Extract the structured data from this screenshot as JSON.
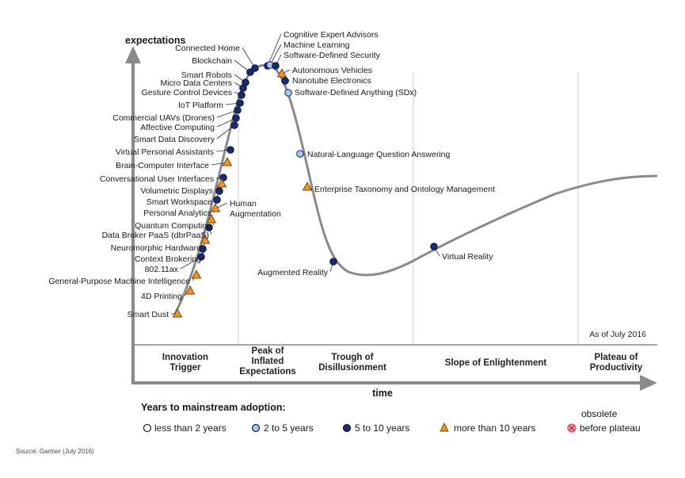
{
  "chart_data": {
    "type": "hype_cycle",
    "y_axis_label": "expectations",
    "x_axis_label": "time",
    "as_of": "As of July 2016",
    "phases": [
      {
        "lines": [
          "Innovation",
          "Trigger"
        ]
      },
      {
        "lines": [
          "Peak of",
          "Inflated",
          "Expectations"
        ]
      },
      {
        "lines": [
          "Trough of",
          "Disillusionment"
        ]
      },
      {
        "lines": [
          "Slope of Enlightenment"
        ]
      },
      {
        "lines": [
          "Plateau of",
          "Productivity"
        ]
      }
    ],
    "technologies": [
      {
        "name": "Cognitive Expert Advisors",
        "category": "5 to 10 years"
      },
      {
        "name": "Machine Learning",
        "category": "2 to 5 years"
      },
      {
        "name": "Software-Defined Security",
        "category": "5 to 10 years"
      },
      {
        "name": "Autonomous Vehicles",
        "category": "more than 10 years"
      },
      {
        "name": "Nanotube Electronics",
        "category": "5 to 10 years"
      },
      {
        "name": "Software-Defined Anything (SDx)",
        "category": "2 to 5 years"
      },
      {
        "name": "Natural-Language Question Answering",
        "category": "2 to 5 years"
      },
      {
        "name": "Enterprise Taxonomy and Ontology Management",
        "category": "more than 10 years"
      },
      {
        "name": "Augmented Reality",
        "category": "5 to 10 years"
      },
      {
        "name": "Virtual Reality",
        "category": "5 to 10 years"
      },
      {
        "name": "Connected Home",
        "category": "5 to 10 years"
      },
      {
        "name": "Blockchain",
        "category": "5 to 10 years"
      },
      {
        "name": "Smart Robots",
        "category": "5 to 10 years"
      },
      {
        "name": "Micro Data Centers",
        "category": "5 to 10 years"
      },
      {
        "name": "Gesture Control Devices",
        "category": "5 to 10 years"
      },
      {
        "name": "IoT Platform",
        "category": "5 to 10 years"
      },
      {
        "name": "Commercial UAVs (Drones)",
        "category": "5 to 10 years"
      },
      {
        "name": "Affective Computing",
        "category": "5 to 10 years"
      },
      {
        "name": "Smart Data Discovery",
        "category": "5 to 10 years"
      },
      {
        "name": "Virtual Personal Assistants",
        "category": "5 to 10 years"
      },
      {
        "name": "Brain-Computer Interface",
        "category": "more than 10 years"
      },
      {
        "name": "Conversational User Interfaces",
        "category": "5 to 10 years"
      },
      {
        "name": "Volumetric Displays",
        "category": "more than 10 years"
      },
      {
        "name": "Smart Workspace",
        "category": "5 to 10 years"
      },
      {
        "name": "Personal Analytics",
        "category": "5 to 10 years"
      },
      {
        "name": "Human Augmentation",
        "category": "more than 10 years"
      },
      {
        "name": "Quantum Computing",
        "category": "more than 10 years"
      },
      {
        "name": "Data Broker PaaS (dbrPaaS)",
        "category": "5 to 10 years"
      },
      {
        "name": "Neuromorphic Hardware",
        "category": "more than 10 years"
      },
      {
        "name": "Context Brokering",
        "category": "5 to 10 years"
      },
      {
        "name": "802.11ax",
        "category": "5 to 10 years"
      },
      {
        "name": "General-Purpose Machine Intelligence",
        "category": "more than 10 years"
      },
      {
        "name": "4D Printing",
        "category": "more than 10 years"
      },
      {
        "name": "Smart Dust",
        "category": "more than 10 years"
      }
    ]
  },
  "legend": {
    "title": "Years to mainstream adoption:",
    "items": [
      {
        "label": "less than 2 years",
        "symbol": "open-circle"
      },
      {
        "label": "2 to 5 years",
        "symbol": "light-blue-circle",
        "color": "#a9c8e8"
      },
      {
        "label": "5 to 10 years",
        "symbol": "dark-blue-circle",
        "color": "#1b2a6b"
      },
      {
        "label": "more than 10 years",
        "symbol": "orange-triangle",
        "color": "#e8952a"
      },
      {
        "label": "obsolete",
        "label2": "before plateau",
        "symbol": "red-x-circle",
        "color": "#e8475c"
      }
    ]
  },
  "source": "Source: Gartner (July 2016)"
}
